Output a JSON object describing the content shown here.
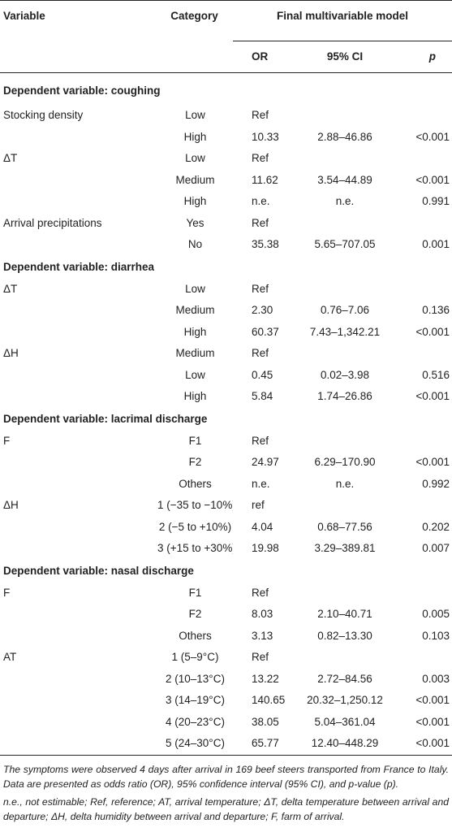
{
  "header": {
    "variable": "Variable",
    "category": "Category",
    "model": "Final multivariable model",
    "or": "OR",
    "ci": "95% CI",
    "p": "p"
  },
  "sections": [
    {
      "title": "Dependent variable: coughing",
      "rows": [
        {
          "variable": "Stocking density",
          "category": "Low",
          "or": "Ref",
          "ci": "",
          "p": ""
        },
        {
          "variable": "",
          "category": "High",
          "or": "10.33",
          "ci": "2.88–46.86",
          "p": "<0.001"
        },
        {
          "variable": "ΔT",
          "category": "Low",
          "or": "Ref",
          "ci": "",
          "p": ""
        },
        {
          "variable": "",
          "category": "Medium",
          "or": "11.62",
          "ci": "3.54–44.89",
          "p": "<0.001"
        },
        {
          "variable": "",
          "category": "High",
          "or": "n.e.",
          "ci": "n.e.",
          "p": "0.991"
        },
        {
          "variable": "Arrival precipitations",
          "category": "Yes",
          "or": "Ref",
          "ci": "",
          "p": ""
        },
        {
          "variable": "",
          "category": "No",
          "or": "35.38",
          "ci": "5.65–707.05",
          "p": "0.001"
        }
      ]
    },
    {
      "title": "Dependent variable: diarrhea",
      "rows": [
        {
          "variable": "ΔT",
          "category": "Low",
          "or": "Ref",
          "ci": "",
          "p": ""
        },
        {
          "variable": "",
          "category": "Medium",
          "or": "2.30",
          "ci": "0.76–7.06",
          "p": "0.136"
        },
        {
          "variable": "",
          "category": "High",
          "or": "60.37",
          "ci": "7.43–1,342.21",
          "p": "<0.001"
        },
        {
          "variable": "ΔH",
          "category": "Medium",
          "or": "Ref",
          "ci": "",
          "p": ""
        },
        {
          "variable": "",
          "category": "Low",
          "or": "0.45",
          "ci": "0.02–3.98",
          "p": "0.516"
        },
        {
          "variable": "",
          "category": "High",
          "or": "5.84",
          "ci": "1.74–26.86",
          "p": "<0.001"
        }
      ]
    },
    {
      "title": "Dependent variable: lacrimal discharge",
      "rows": [
        {
          "variable": "F",
          "category": "F1",
          "or": "Ref",
          "ci": "",
          "p": ""
        },
        {
          "variable": "",
          "category": "F2",
          "or": "24.97",
          "ci": "6.29–170.90",
          "p": "<0.001"
        },
        {
          "variable": "",
          "category": "Others",
          "or": "n.e.",
          "ci": "n.e.",
          "p": "0.992"
        },
        {
          "variable": "ΔH",
          "category": "1 (−35 to −10%)",
          "or": "ref",
          "ci": "",
          "p": ""
        },
        {
          "variable": "",
          "category": "2 (−5 to +10%)",
          "or": "4.04",
          "ci": "0.68–77.56",
          "p": "0.202"
        },
        {
          "variable": "",
          "category": "3 (+15 to +30%)",
          "or": "19.98",
          "ci": "3.29–389.81",
          "p": "0.007"
        }
      ]
    },
    {
      "title": "Dependent variable: nasal discharge",
      "rows": [
        {
          "variable": "F",
          "category": "F1",
          "or": "Ref",
          "ci": "",
          "p": ""
        },
        {
          "variable": "",
          "category": "F2",
          "or": "8.03",
          "ci": "2.10–40.71",
          "p": "0.005"
        },
        {
          "variable": "",
          "category": "Others",
          "or": "3.13",
          "ci": "0.82–13.30",
          "p": "0.103"
        },
        {
          "variable": "AT",
          "category": "1 (5–9°C)",
          "or": "Ref",
          "ci": "",
          "p": ""
        },
        {
          "variable": "",
          "category": "2 (10–13°C)",
          "or": "13.22",
          "ci": "2.72–84.56",
          "p": "0.003"
        },
        {
          "variable": "",
          "category": "3 (14–19°C)",
          "or": "140.65",
          "ci": "20.32–1,250.12",
          "p": "<0.001"
        },
        {
          "variable": "",
          "category": "4 (20–23°C)",
          "or": "38.05",
          "ci": "5.04–361.04",
          "p": "<0.001"
        },
        {
          "variable": "",
          "category": "5 (24–30°C)",
          "or": "65.77",
          "ci": "12.40–448.29",
          "p": "<0.001"
        }
      ]
    }
  ],
  "notes": {
    "description": "The symptoms were observed 4 days after arrival in 169 beef steers transported from France to Italy. Data are presented as odds ratio (OR), 95% confidence interval (95% CI), and p-value (p).",
    "abbreviations": "n.e., not estimable; Ref, reference; AT, arrival temperature; ΔT, delta temperature between arrival and departure; ΔH, delta humidity between arrival and departure; F, farm of arrival."
  }
}
